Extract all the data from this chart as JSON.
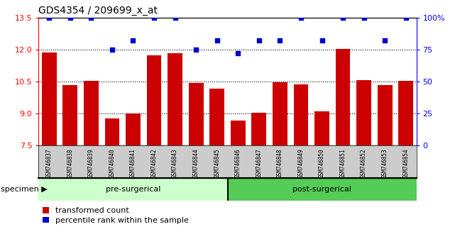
{
  "title": "GDS4354 / 209699_x_at",
  "samples": [
    "GSM746837",
    "GSM746838",
    "GSM746839",
    "GSM746840",
    "GSM746841",
    "GSM746842",
    "GSM746843",
    "GSM746844",
    "GSM746845",
    "GSM746846",
    "GSM746847",
    "GSM746848",
    "GSM746849",
    "GSM746850",
    "GSM746851",
    "GSM746852",
    "GSM746853",
    "GSM746854"
  ],
  "bar_values": [
    11.87,
    10.35,
    10.52,
    8.78,
    9.02,
    11.72,
    11.82,
    10.42,
    10.18,
    8.68,
    9.05,
    10.48,
    10.38,
    9.12,
    12.02,
    10.58,
    10.32,
    10.52
  ],
  "dot_values": [
    100,
    100,
    100,
    75,
    82,
    100,
    100,
    75,
    82,
    72,
    82,
    82,
    100,
    82,
    100,
    100,
    82,
    100
  ],
  "pre_surgical_count": 9,
  "post_surgical_count": 9,
  "ylim_left": [
    7.5,
    13.5
  ],
  "ylim_right": [
    0,
    100
  ],
  "yticks_left": [
    7.5,
    9.0,
    10.5,
    12.0,
    13.5
  ],
  "yticks_right": [
    0,
    25,
    50,
    75,
    100
  ],
  "bar_color": "#cc0000",
  "dot_color": "#0000cc",
  "pre_color": "#ccffcc",
  "post_color": "#55cc55",
  "tick_bg": "#cccccc",
  "legend_bar_label": "transformed count",
  "legend_dot_label": "percentile rank within the sample",
  "pre_label": "pre-surgerical",
  "post_label": "post-surgerical"
}
